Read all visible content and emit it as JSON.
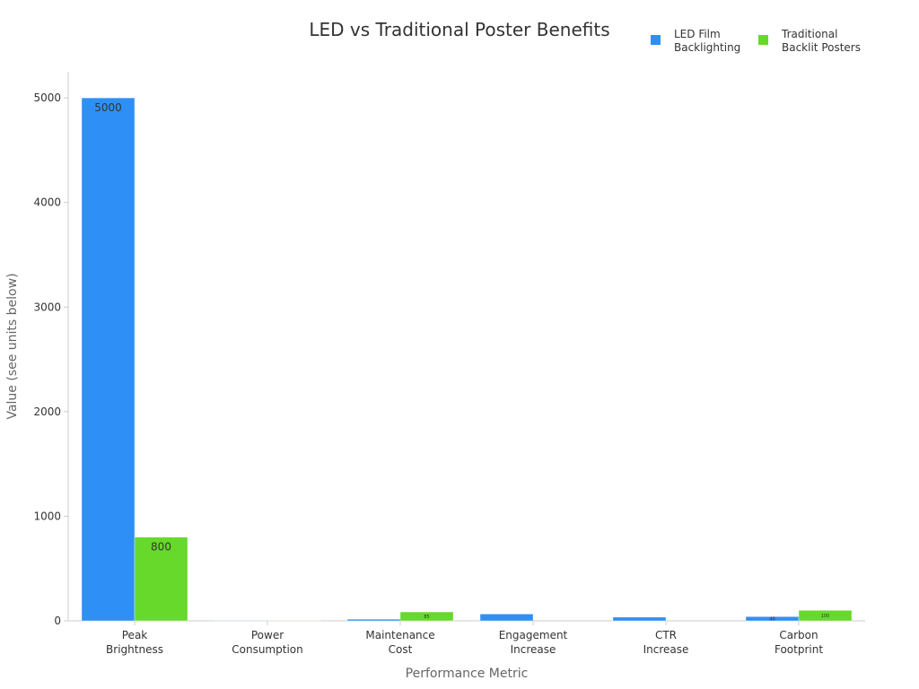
{
  "chart_data": {
    "type": "bar",
    "title": "LED vs Traditional Poster Benefits",
    "xlabel": "Performance Metric",
    "ylabel": "Value (see units below)",
    "categories": [
      [
        "Peak",
        "Brightness"
      ],
      [
        "Power",
        "Consumption"
      ],
      [
        "Maintenance",
        "Cost"
      ],
      [
        "Engagement",
        "Increase"
      ],
      [
        "CTR",
        "Increase"
      ],
      [
        "Carbon",
        "Footprint"
      ]
    ],
    "series": [
      {
        "name": [
          "LED Film",
          "Backlighting"
        ],
        "color": "#2e90f6",
        "values": [
          5000,
          3,
          15,
          65,
          35,
          40
        ],
        "labels": [
          "5000",
          "",
          "",
          "",
          "",
          "40"
        ]
      },
      {
        "name": [
          "Traditional",
          "Backlit Posters"
        ],
        "color": "#66d92a",
        "values": [
          800,
          2,
          85,
          0,
          0,
          100
        ],
        "labels": [
          "800",
          "",
          "85",
          "",
          "",
          "100"
        ]
      }
    ],
    "yticks": [
      0,
      1000,
      2000,
      3000,
      4000,
      5000
    ],
    "ylim": [
      0,
      5250
    ],
    "legend": "top-right",
    "grid": false
  }
}
